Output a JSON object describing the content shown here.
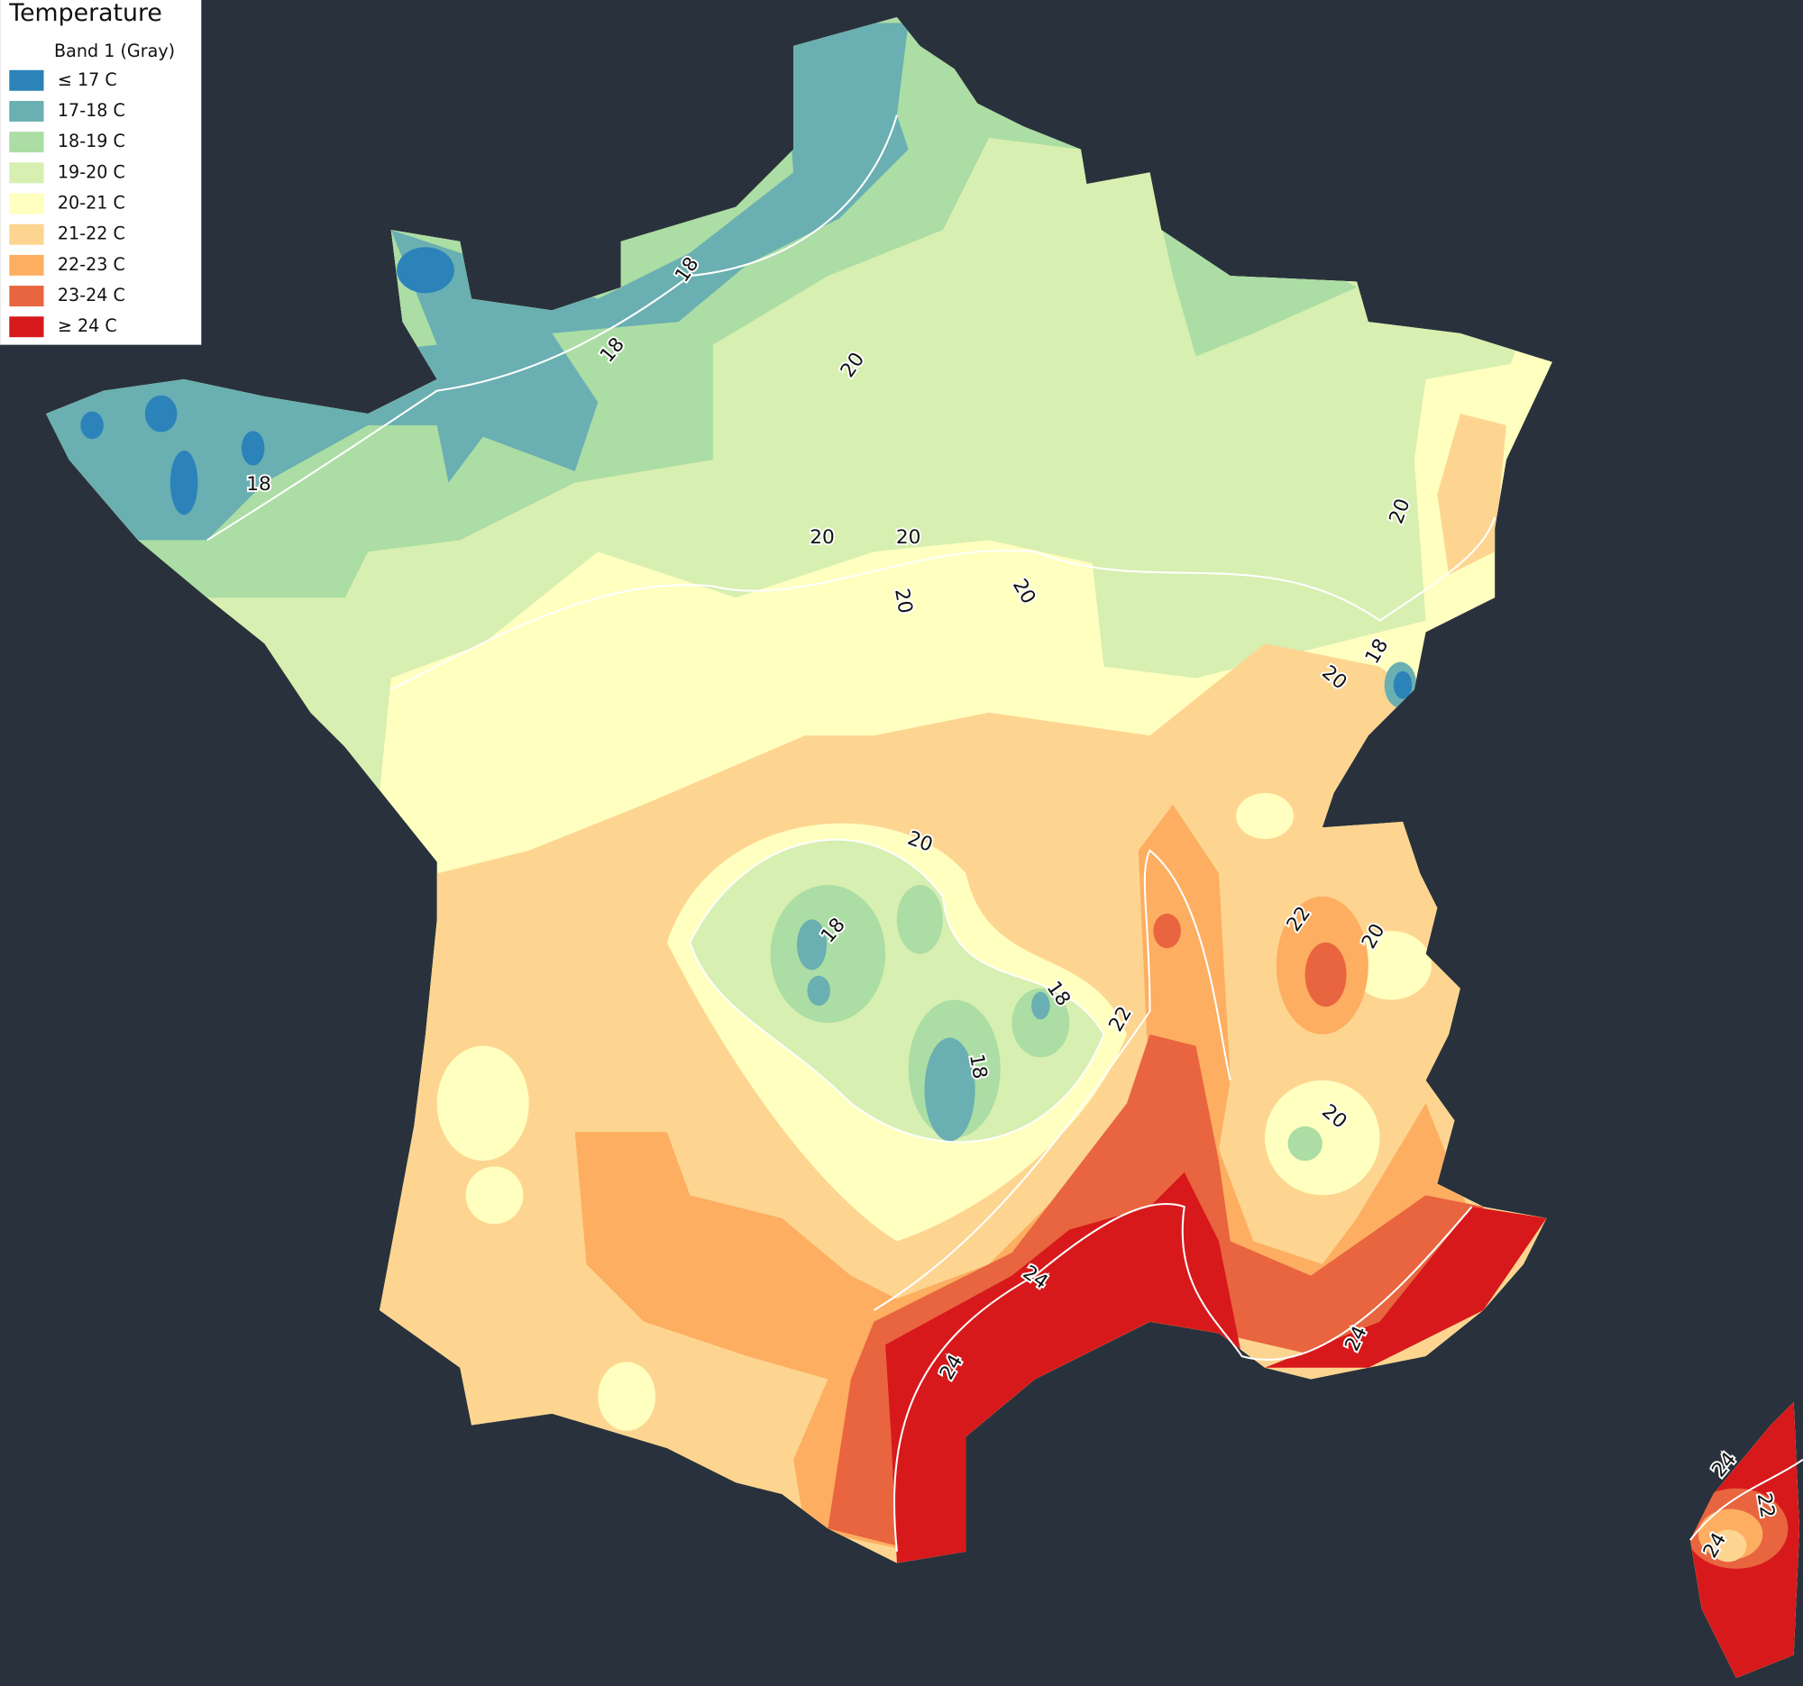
{
  "legend": {
    "title": "Temperature",
    "subtitle": "Band 1 (Gray)",
    "items": [
      {
        "label": "≤ 17 C",
        "color": "#2b83ba"
      },
      {
        "label": "17-18 C",
        "color": "#6aafb1"
      },
      {
        "label": "18-19 C",
        "color": "#abdda4"
      },
      {
        "label": "19-20 C",
        "color": "#d7efb0"
      },
      {
        "label": "20-21 C",
        "color": "#ffffbf"
      },
      {
        "label": "21-22 C",
        "color": "#fdd591"
      },
      {
        "label": "22-23 C",
        "color": "#fdae61"
      },
      {
        "label": "23-24 C",
        "color": "#e8653f"
      },
      {
        "label": "≥ 24 C",
        "color": "#d7191c"
      }
    ]
  },
  "contour_labels": [
    "18",
    "18",
    "18",
    "20",
    "20",
    "20",
    "20",
    "20",
    "20",
    "18",
    "20",
    "20",
    "18",
    "18",
    "22",
    "18",
    "22",
    "20",
    "20",
    "24",
    "24",
    "24",
    "24",
    "22",
    "24"
  ]
}
